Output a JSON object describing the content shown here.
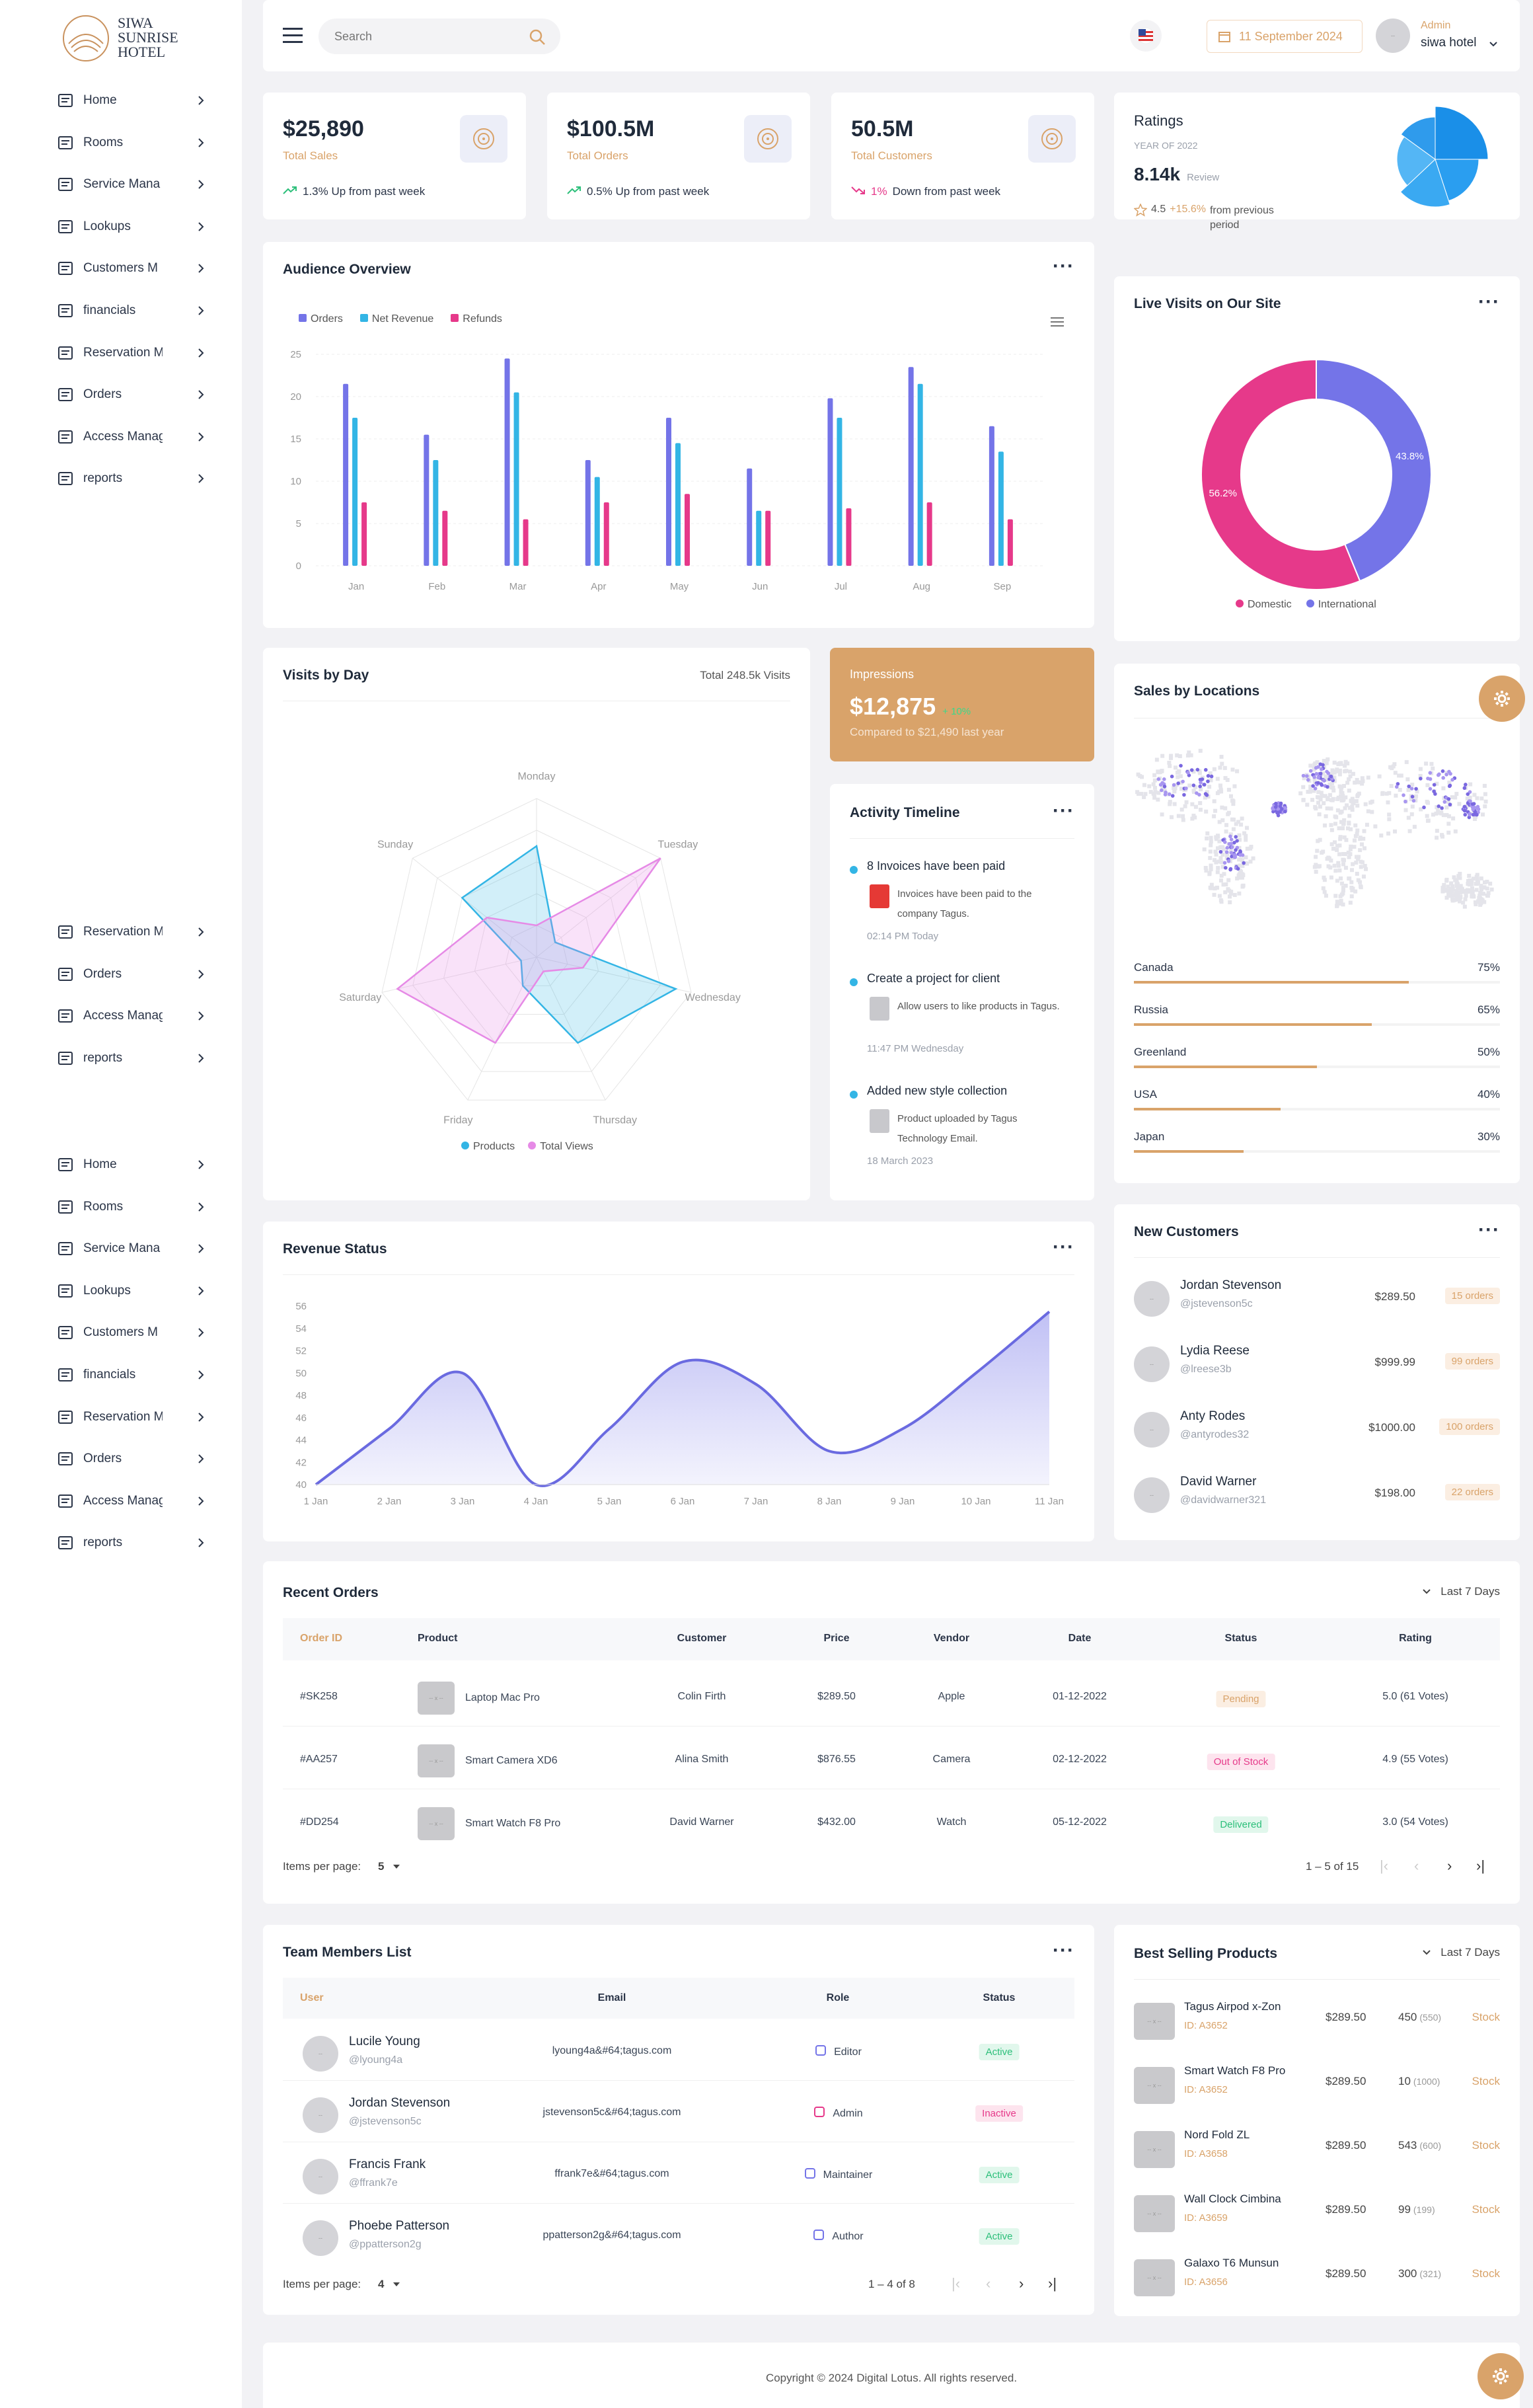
{
  "brand": {
    "line1": "SIWA",
    "line2": "SUNRISE",
    "line3": "HOTEL"
  },
  "sidebar": {
    "group1": [
      {
        "label": "Home",
        "icon": "home-icon"
      },
      {
        "label": "Rooms",
        "icon": "bed-icon"
      },
      {
        "label": "Service Mana",
        "icon": "service-icon"
      },
      {
        "label": "Lookups",
        "icon": "lookups-icon"
      },
      {
        "label": "Customers M",
        "icon": "customers-icon"
      },
      {
        "label": "financials",
        "icon": "financials-icon"
      },
      {
        "label": "Reservation M",
        "icon": "reservation-icon"
      },
      {
        "label": "Orders",
        "icon": "orders-icon"
      },
      {
        "label": "Access Manag",
        "icon": "access-icon"
      },
      {
        "label": "reports",
        "icon": "reports-icon"
      }
    ],
    "group2": [
      {
        "label": "Reservation M",
        "icon": "reservation-icon"
      },
      {
        "label": "Orders",
        "icon": "orders-icon"
      },
      {
        "label": "Access Manag",
        "icon": "access-icon"
      },
      {
        "label": "reports",
        "icon": "reports-icon"
      }
    ],
    "group3": [
      {
        "label": "Home",
        "icon": "home-icon"
      },
      {
        "label": "Rooms",
        "icon": "bed-icon"
      },
      {
        "label": "Service Mana",
        "icon": "service-icon"
      },
      {
        "label": "Lookups",
        "icon": "lookups-icon"
      },
      {
        "label": "Customers M",
        "icon": "customers-icon"
      },
      {
        "label": "financials",
        "icon": "financials-icon"
      },
      {
        "label": "Reservation M",
        "icon": "reservation-icon"
      },
      {
        "label": "Orders",
        "icon": "orders-icon"
      },
      {
        "label": "Access Manag",
        "icon": "access-icon"
      },
      {
        "label": "reports",
        "icon": "reports-icon"
      }
    ]
  },
  "header": {
    "search_placeholder": "Search",
    "date": "11 September 2024",
    "role": "Admin",
    "user": "siwa hotel"
  },
  "stats": [
    {
      "value": "$25,890",
      "label": "Total Sales",
      "trend": "1.3% Up from past week",
      "dir": "up"
    },
    {
      "value": "$100.5M",
      "label": "Total Orders",
      "trend": "0.5% Up from past week",
      "dir": "up"
    },
    {
      "value": "50.5M",
      "label": "Total Customers",
      "trend_pct": "1%",
      "trend": " Down from past week",
      "dir": "down"
    }
  ],
  "ratings": {
    "title": "Ratings",
    "year": "YEAR OF 2022",
    "value": "8.14k",
    "value_suffix": "Review",
    "score": "4.5",
    "change": "+15.6%",
    "change_suffix": "from previous period"
  },
  "audience": {
    "title": "Audience Overview",
    "legend": [
      "Orders",
      "Net Revenue",
      "Refunds"
    ]
  },
  "chart_data": [
    {
      "type": "bar",
      "title": "Audience Overview",
      "categories": [
        "Jan",
        "Feb",
        "Mar",
        "Apr",
        "May",
        "Jun",
        "Jul",
        "Aug",
        "Sep"
      ],
      "ylim": [
        0,
        25
      ],
      "yticks": [
        0,
        5,
        10,
        15,
        20,
        25
      ],
      "colors": [
        "#7474e8",
        "#33b5e5",
        "#e6398a"
      ],
      "series": [
        {
          "name": "Orders",
          "values": [
            21.5,
            15.5,
            24.5,
            12.5,
            17.5,
            11.5,
            19.8,
            23.5,
            16.5
          ]
        },
        {
          "name": "Net Revenue",
          "values": [
            17.5,
            12.5,
            20.5,
            10.5,
            14.5,
            6.5,
            17.5,
            21.5,
            13.5
          ]
        },
        {
          "name": "Refunds",
          "values": [
            7.5,
            6.5,
            5.5,
            7.5,
            8.5,
            6.5,
            6.8,
            7.5,
            5.5
          ]
        }
      ]
    },
    {
      "type": "pie",
      "title": "Live Visits on Our Site",
      "labels": [
        "International",
        "Domestic"
      ],
      "values": [
        43.8,
        56.2
      ],
      "labels_text": [
        "43.8%",
        "56.2%"
      ],
      "colors": [
        "#7474e8",
        "#e6398a"
      ]
    },
    {
      "type": "radar",
      "title": "Visits by Day",
      "axes": [
        "Monday",
        "Tuesday",
        "Wednesday",
        "Thursday",
        "Friday",
        "Saturday",
        "Sunday"
      ],
      "max": 100,
      "series": [
        {
          "name": "Products",
          "values": [
            70,
            15,
            90,
            60,
            20,
            10,
            60
          ]
        },
        {
          "name": "Total Views",
          "values": [
            20,
            100,
            30,
            10,
            60,
            90,
            40
          ]
        }
      ]
    },
    {
      "type": "area",
      "title": "Revenue Status",
      "categories": [
        "1 Jan",
        "2 Jan",
        "3 Jan",
        "4 Jan",
        "5 Jan",
        "6 Jan",
        "7 Jan",
        "8 Jan",
        "9 Jan",
        "10 Jan",
        "11 Jan"
      ],
      "ylim": [
        40,
        56
      ],
      "yticks": [
        40,
        42,
        44,
        46,
        48,
        50,
        52,
        54,
        56
      ],
      "series": [
        {
          "values": [
            40,
            45,
            50,
            40,
            45,
            51,
            49,
            43,
            45,
            50,
            55.5
          ]
        }
      ]
    },
    {
      "type": "pie",
      "title": "Ratings",
      "values": [
        25,
        20,
        18,
        22,
        15
      ]
    }
  ],
  "visits": {
    "title": "Visits by Day",
    "total": "Total 248.5k Visits",
    "legend": [
      "Products",
      "Total Views"
    ]
  },
  "impressions": {
    "title": "Impressions",
    "value": "$12,875",
    "change": "+ 10%",
    "compare": "Compared to $21,490 last year"
  },
  "timeline": {
    "title": "Activity Timeline",
    "items": [
      {
        "title": "8 Invoices have been paid",
        "desc": "Invoices have been paid to the company Tagus.",
        "time": "02:14 PM Today"
      },
      {
        "title": "Create a project for client",
        "desc": "Allow users to like products in Tagus.",
        "time": "11:47 PM Wednesday"
      },
      {
        "title": "Added new style collection",
        "desc": "Product uploaded by Tagus Technology Email.",
        "time": "18 March 2023"
      }
    ]
  },
  "live": {
    "title": "Live Visits on Our Site",
    "legend": [
      "Domestic",
      "International"
    ]
  },
  "locations": {
    "title": "Sales by Locations",
    "items": [
      {
        "country": "Canada",
        "pct": "75%",
        "value": 0.75
      },
      {
        "country": "Russia",
        "pct": "65%",
        "value": 0.65
      },
      {
        "country": "Greenland",
        "pct": "50%",
        "value": 0.5
      },
      {
        "country": "USA",
        "pct": "40%",
        "value": 0.4
      },
      {
        "country": "Japan",
        "pct": "30%",
        "value": 0.3
      }
    ]
  },
  "revenue": {
    "title": "Revenue Status"
  },
  "new_customers": {
    "title": "New Customers",
    "items": [
      {
        "name": "Jordan Stevenson",
        "handle": "@jstevenson5c",
        "amount": "$289.50",
        "orders": "15 orders"
      },
      {
        "name": "Lydia Reese",
        "handle": "@lreese3b",
        "amount": "$999.99",
        "orders": "99 orders"
      },
      {
        "name": "Anty Rodes",
        "handle": "@antyrodes32",
        "amount": "$1000.00",
        "orders": "100 orders"
      },
      {
        "name": "David Warner",
        "handle": "@davidwarner321",
        "amount": "$198.00",
        "orders": "22 orders"
      }
    ]
  },
  "orders": {
    "title": "Recent Orders",
    "filter": "Last 7 Days",
    "headers": [
      "Order ID",
      "Product",
      "Customer",
      "Price",
      "Vendor",
      "Date",
      "Status",
      "Rating"
    ],
    "rows": [
      {
        "id": "#SK258",
        "product": "Laptop Mac Pro",
        "customer": "Colin Firth",
        "price": "$289.50",
        "vendor": "Apple",
        "date": "01-12-2022",
        "status": "Pending",
        "rating": "5.0 (61 Votes)"
      },
      {
        "id": "#AA257",
        "product": "Smart Camera XD6",
        "customer": "Alina Smith",
        "price": "$876.55",
        "vendor": "Camera",
        "date": "02-12-2022",
        "status": "Out of Stock",
        "rating": "4.9 (55 Votes)"
      },
      {
        "id": "#DD254",
        "product": "Smart Watch F8 Pro",
        "customer": "David Warner",
        "price": "$432.00",
        "vendor": "Watch",
        "date": "05-12-2022",
        "status": "Delivered",
        "rating": "3.0 (54 Votes)"
      }
    ],
    "items_per_page_label": "Items per page:",
    "items_per_page": "5",
    "range": "1 – 5 of 15"
  },
  "team": {
    "title": "Team Members List",
    "headers": [
      "User",
      "Email",
      "Role",
      "Status"
    ],
    "rows": [
      {
        "name": "Lucile Young",
        "handle": "@lyoung4a",
        "email": "lyoung4a&#64;tagus.com",
        "role": "Editor",
        "role_icon": "pencil-icon",
        "status": "Active"
      },
      {
        "name": "Jordan Stevenson",
        "handle": "@jstevenson5c",
        "email": "jstevenson5c&#64;tagus.com",
        "role": "Admin",
        "role_icon": "monitor-icon",
        "status": "Inactive"
      },
      {
        "name": "Francis Frank",
        "handle": "@ffrank7e",
        "email": "ffrank7e&#64;tagus.com",
        "role": "Maintainer",
        "role_icon": "sliders-icon",
        "status": "Active"
      },
      {
        "name": "Phoebe Patterson",
        "handle": "@ppatterson2g",
        "email": "ppatterson2g&#64;tagus.com",
        "role": "Author",
        "role_icon": "gear-icon",
        "status": "Active"
      }
    ],
    "items_per_page_label": "Items per page:",
    "items_per_page": "4",
    "range": "1 – 4 of 8"
  },
  "best": {
    "title": "Best Selling Products",
    "filter": "Last 7 Days",
    "items": [
      {
        "name": "Tagus Airpod x-Zon",
        "id": "ID: A3652",
        "price": "$289.50",
        "qty": "450",
        "total": "(550)",
        "stock": "Stock"
      },
      {
        "name": "Smart Watch F8 Pro",
        "id": "ID: A3652",
        "price": "$289.50",
        "qty": "10",
        "total": "(1000)",
        "stock": "Stock"
      },
      {
        "name": "Nord Fold ZL",
        "id": "ID: A3658",
        "price": "$289.50",
        "qty": "543",
        "total": "(600)",
        "stock": "Stock"
      },
      {
        "name": "Wall Clock Cimbina",
        "id": "ID: A3659",
        "price": "$289.50",
        "qty": "99",
        "total": "(199)",
        "stock": "Stock"
      },
      {
        "name": "Galaxo T6 Munsun",
        "id": "ID: A3656",
        "price": "$289.50",
        "qty": "300",
        "total": "(321)",
        "stock": "Stock"
      }
    ]
  },
  "footer": {
    "text": "Copyright © 2024 Digital Lotus. All rights reserved."
  },
  "colors": {
    "accent": "#d9a36a",
    "orders": "#7474e8",
    "revenue": "#33b5e5",
    "refunds": "#e6398a",
    "success": "#2cbf7a",
    "danger": "#e6398a"
  }
}
